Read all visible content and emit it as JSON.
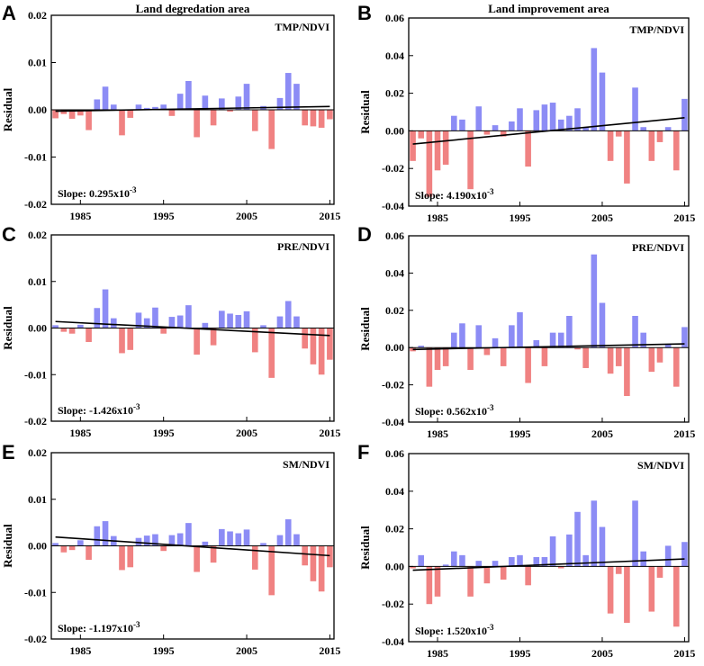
{
  "colors": {
    "positive": "#8c8cf5",
    "negative": "#f08282",
    "trend": "#000000",
    "axis": "#000000"
  },
  "chart_data": [
    {
      "panel": "A",
      "type": "bar",
      "column_title": "Land degredation area",
      "label": "TMP/NDVI",
      "slope_text": "Slope: 0.295x10",
      "slope_exp": "-3",
      "ylabel": "Residual",
      "ylim": [
        -0.02,
        0.02
      ],
      "yticks": [
        -0.02,
        -0.01,
        0.0,
        0.01,
        0.02
      ],
      "ytick_labels": [
        "-0.02",
        "-0.01",
        "0.00",
        "0.01",
        "0.02"
      ],
      "xticks": [
        1985,
        1995,
        2005,
        2015
      ],
      "xlim": [
        1981.5,
        2015.5
      ],
      "trend": {
        "start": [
          1982,
          -0.0003
        ],
        "end": [
          2015,
          0.0007
        ]
      },
      "x": [
        1982,
        1983,
        1984,
        1985,
        1986,
        1987,
        1988,
        1989,
        1990,
        1991,
        1992,
        1993,
        1994,
        1995,
        1996,
        1997,
        1998,
        1999,
        2000,
        2001,
        2002,
        2003,
        2004,
        2005,
        2006,
        2007,
        2008,
        2009,
        2010,
        2011,
        2012,
        2013,
        2014,
        2015
      ],
      "values": [
        -0.0018,
        -0.0009,
        -0.0019,
        -0.0012,
        -0.0043,
        0.0022,
        0.0049,
        0.0011,
        -0.0054,
        -0.0017,
        0.0011,
        0.0004,
        0.0006,
        0.0011,
        -0.0013,
        0.0034,
        0.0061,
        -0.0058,
        0.003,
        -0.0033,
        0.0024,
        -0.0004,
        0.0028,
        0.0055,
        -0.0045,
        0.0008,
        -0.0083,
        0.0025,
        0.0078,
        0.0055,
        -0.0033,
        -0.0035,
        -0.0038,
        -0.002
      ]
    },
    {
      "panel": "B",
      "type": "bar",
      "column_title": "Land improvement area",
      "label": "TMP/NDVI",
      "slope_text": "Slope: 4.190x10",
      "slope_exp": "-3",
      "ylabel": "Residual",
      "ylim": [
        -0.04,
        0.06
      ],
      "yticks": [
        -0.04,
        -0.02,
        0.0,
        0.02,
        0.04,
        0.06
      ],
      "ytick_labels": [
        "-0.04",
        "-0.02",
        "0.00",
        "0.02",
        "0.04",
        "0.06"
      ],
      "xticks": [
        1985,
        1995,
        2005,
        2015
      ],
      "xlim": [
        1981.5,
        2015.5
      ],
      "trend": {
        "start": [
          1982,
          -0.007
        ],
        "end": [
          2015,
          0.007
        ]
      },
      "x": [
        1982,
        1983,
        1984,
        1985,
        1986,
        1987,
        1988,
        1989,
        1990,
        1991,
        1992,
        1993,
        1994,
        1995,
        1996,
        1997,
        1998,
        1999,
        2000,
        2001,
        2002,
        2003,
        2004,
        2005,
        2006,
        2007,
        2008,
        2009,
        2010,
        2011,
        2012,
        2013,
        2014,
        2015
      ],
      "values": [
        -0.016,
        -0.004,
        -0.035,
        -0.021,
        -0.018,
        0.008,
        0.006,
        -0.031,
        0.013,
        -0.002,
        0.003,
        -0.003,
        0.005,
        0.012,
        -0.019,
        0.011,
        0.014,
        0.015,
        0.006,
        0.008,
        0.012,
        0.002,
        0.044,
        0.031,
        -0.016,
        -0.003,
        -0.028,
        0.023,
        0.002,
        -0.016,
        -0.006,
        0.002,
        -0.021,
        0.017
      ]
    },
    {
      "panel": "C",
      "type": "bar",
      "label": "PRE/NDVI",
      "slope_text": "Slope: -1.426x10",
      "slope_exp": "-3",
      "ylabel": "Residual",
      "ylim": [
        -0.02,
        0.02
      ],
      "yticks": [
        -0.02,
        -0.01,
        0.0,
        0.01,
        0.02
      ],
      "ytick_labels": [
        "-0.02",
        "-0.01",
        "0.00",
        "0.01",
        "0.02"
      ],
      "xticks": [
        1985,
        1995,
        2005,
        2015
      ],
      "xlim": [
        1981.5,
        2015.5
      ],
      "trend": {
        "start": [
          1982,
          0.0014
        ],
        "end": [
          2015,
          -0.0016
        ]
      },
      "x": [
        1982,
        1983,
        1984,
        1985,
        1986,
        1987,
        1988,
        1989,
        1990,
        1991,
        1992,
        1993,
        1994,
        1995,
        1996,
        1997,
        1998,
        1999,
        2000,
        2001,
        2002,
        2003,
        2004,
        2005,
        2006,
        2007,
        2008,
        2009,
        2010,
        2011,
        2012,
        2013,
        2014,
        2015
      ],
      "values": [
        0.0006,
        -0.0008,
        -0.0012,
        0.0007,
        -0.003,
        0.0043,
        0.0083,
        0.0021,
        -0.0054,
        -0.0047,
        0.0033,
        0.0021,
        0.0044,
        -0.0012,
        0.0024,
        0.0027,
        0.0049,
        -0.0057,
        0.0011,
        -0.0037,
        0.0037,
        0.0031,
        0.0028,
        0.0036,
        -0.0052,
        0.0006,
        -0.0107,
        0.0025,
        0.0058,
        0.0025,
        -0.0044,
        -0.0078,
        -0.01,
        -0.0068
      ]
    },
    {
      "panel": "D",
      "type": "bar",
      "label": "PRE/NDVI",
      "slope_text": "Slope: 0.562x10",
      "slope_exp": "-3",
      "ylabel": "Residual",
      "ylim": [
        -0.04,
        0.06
      ],
      "yticks": [
        -0.04,
        -0.02,
        0.0,
        0.02,
        0.04,
        0.06
      ],
      "ytick_labels": [
        "-0.04",
        "-0.02",
        "0.00",
        "0.02",
        "0.04",
        "0.06"
      ],
      "xticks": [
        1985,
        1995,
        2005,
        2015
      ],
      "xlim": [
        1981.5,
        2015.5
      ],
      "trend": {
        "start": [
          1982,
          -0.001
        ],
        "end": [
          2015,
          0.002
        ]
      },
      "x": [
        1982,
        1983,
        1984,
        1985,
        1986,
        1987,
        1988,
        1989,
        1990,
        1991,
        1992,
        1993,
        1994,
        1995,
        1996,
        1997,
        1998,
        1999,
        2000,
        2001,
        2002,
        2003,
        2004,
        2005,
        2006,
        2007,
        2008,
        2009,
        2010,
        2011,
        2012,
        2013,
        2014,
        2015
      ],
      "values": [
        -0.002,
        0.001,
        -0.021,
        -0.012,
        -0.01,
        0.008,
        0.013,
        -0.012,
        0.012,
        -0.004,
        0.005,
        -0.01,
        0.012,
        0.019,
        -0.019,
        0.004,
        -0.01,
        0.008,
        0.008,
        0.017,
        -0.001,
        -0.011,
        0.05,
        0.024,
        -0.014,
        -0.01,
        -0.026,
        0.017,
        0.008,
        -0.013,
        -0.008,
        0.002,
        -0.021,
        0.011
      ]
    },
    {
      "panel": "E",
      "type": "bar",
      "label": "SM/NDVI",
      "slope_text": "Slope: -1.197x10",
      "slope_exp": "-3",
      "ylabel": "Residual",
      "ylim": [
        -0.02,
        0.02
      ],
      "yticks": [
        -0.02,
        -0.01,
        0.0,
        0.01,
        0.02
      ],
      "ytick_labels": [
        "-0.02",
        "-0.01",
        "0.00",
        "0.01",
        "0.02"
      ],
      "xticks": [
        1985,
        1995,
        2005,
        2015
      ],
      "xlim": [
        1981.5,
        2015.5
      ],
      "trend": {
        "start": [
          1982,
          0.0019
        ],
        "end": [
          2015,
          -0.0021
        ]
      },
      "x": [
        1982,
        1983,
        1984,
        1985,
        1986,
        1987,
        1988,
        1989,
        1990,
        1991,
        1992,
        1993,
        1994,
        1995,
        1996,
        1997,
        1998,
        1999,
        2000,
        2001,
        2002,
        2003,
        2004,
        2005,
        2006,
        2007,
        2008,
        2009,
        2010,
        2011,
        2012,
        2013,
        2014,
        2015
      ],
      "values": [
        0.0006,
        -0.0014,
        -0.0009,
        0.0012,
        -0.003,
        0.0042,
        0.0053,
        0.0021,
        -0.0052,
        -0.0046,
        0.0017,
        0.0022,
        0.0025,
        -0.0011,
        0.0023,
        0.0027,
        0.0049,
        -0.0056,
        0.0009,
        -0.0036,
        0.0036,
        0.0031,
        0.0027,
        0.0035,
        -0.0051,
        0.0006,
        -0.0106,
        0.0023,
        0.0057,
        0.0025,
        -0.0042,
        -0.0076,
        -0.0098,
        -0.0046
      ]
    },
    {
      "panel": "F",
      "type": "bar",
      "label": "SM/NDVI",
      "slope_text": "Slope: 1.520x10",
      "slope_exp": "-3",
      "ylabel": "Residual",
      "ylim": [
        -0.04,
        0.06
      ],
      "yticks": [
        -0.04,
        -0.02,
        0.0,
        0.02,
        0.04,
        0.06
      ],
      "ytick_labels": [
        "-0.04",
        "-0.02",
        "0.00",
        "0.02",
        "0.04",
        "0.06"
      ],
      "xticks": [
        1985,
        1995,
        2005,
        2015
      ],
      "xlim": [
        1981.5,
        2015.5
      ],
      "trend": {
        "start": [
          1982,
          -0.002
        ],
        "end": [
          2015,
          0.004
        ]
      },
      "x": [
        1982,
        1983,
        1984,
        1985,
        1986,
        1987,
        1988,
        1989,
        1990,
        1991,
        1992,
        1993,
        1994,
        1995,
        1996,
        1997,
        1998,
        1999,
        2000,
        2001,
        2002,
        2003,
        2004,
        2005,
        2006,
        2007,
        2008,
        2009,
        2010,
        2011,
        2012,
        2013,
        2014,
        2015
      ],
      "values": [
        -0.001,
        0.006,
        -0.02,
        -0.016,
        0.001,
        0.008,
        0.006,
        -0.016,
        0.003,
        -0.009,
        0.003,
        -0.007,
        0.005,
        0.006,
        -0.01,
        0.005,
        0.005,
        0.016,
        -0.001,
        0.017,
        0.029,
        0.006,
        0.035,
        0.021,
        -0.025,
        -0.004,
        -0.03,
        0.035,
        0.008,
        -0.024,
        -0.006,
        0.011,
        -0.032,
        0.013
      ]
    }
  ]
}
